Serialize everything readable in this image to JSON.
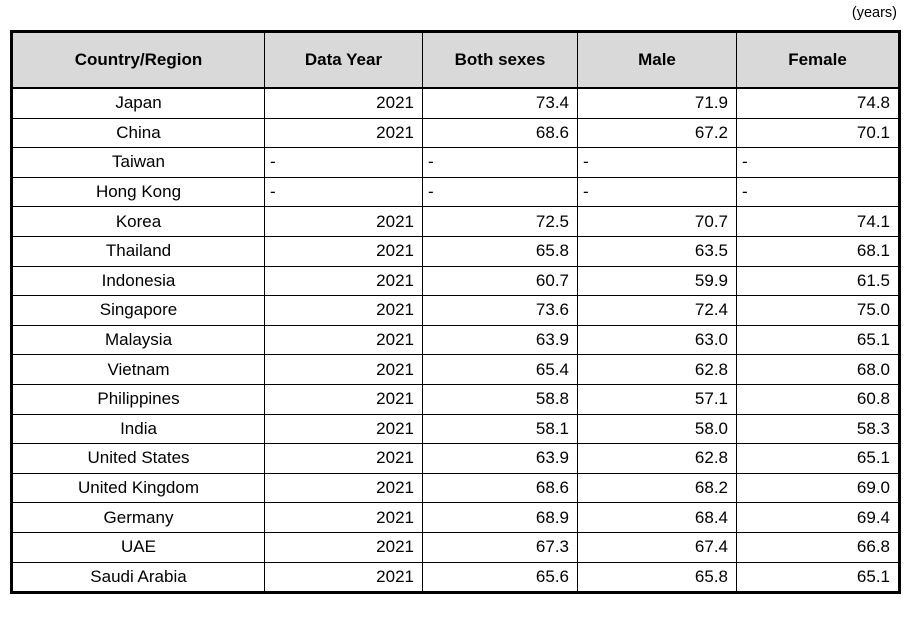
{
  "unit_label": "(years)",
  "chart_data": {
    "type": "table",
    "title": "",
    "unit": "(years)",
    "columns": [
      "Country/Region",
      "Data Year",
      "Both sexes",
      "Male",
      "Female"
    ],
    "column_keys": [
      "country",
      "data-year",
      "both-sexes",
      "male",
      "female"
    ],
    "header_bg_color": "#d9d9d9",
    "border_color": "#000000",
    "rows": [
      [
        "Japan",
        "2021",
        "73.4",
        "71.9",
        "74.8"
      ],
      [
        "China",
        "2021",
        "68.6",
        "67.2",
        "70.1"
      ],
      [
        "Taiwan",
        "-",
        "-",
        "-",
        "-"
      ],
      [
        "Hong Kong",
        "-",
        "-",
        "-",
        "-"
      ],
      [
        "Korea",
        "2021",
        "72.5",
        "70.7",
        "74.1"
      ],
      [
        "Thailand",
        "2021",
        "65.8",
        "63.5",
        "68.1"
      ],
      [
        "Indonesia",
        "2021",
        "60.7",
        "59.9",
        "61.5"
      ],
      [
        "Singapore",
        "2021",
        "73.6",
        "72.4",
        "75.0"
      ],
      [
        "Malaysia",
        "2021",
        "63.9",
        "63.0",
        "65.1"
      ],
      [
        "Vietnam",
        "2021",
        "65.4",
        "62.8",
        "68.0"
      ],
      [
        "Philippines",
        "2021",
        "58.8",
        "57.1",
        "60.8"
      ],
      [
        "India",
        "2021",
        "58.1",
        "58.0",
        "58.3"
      ],
      [
        "United States",
        "2021",
        "63.9",
        "62.8",
        "65.1"
      ],
      [
        "United Kingdom",
        "2021",
        "68.6",
        "68.2",
        "69.0"
      ],
      [
        "Germany",
        "2021",
        "68.9",
        "68.4",
        "69.4"
      ],
      [
        "UAE",
        "2021",
        "67.3",
        "67.4",
        "66.8"
      ],
      [
        "Saudi Arabia",
        "2021",
        "65.6",
        "65.8",
        "65.1"
      ]
    ]
  }
}
